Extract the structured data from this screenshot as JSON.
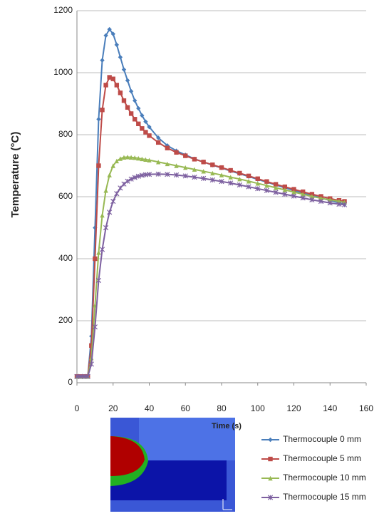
{
  "chart_data": {
    "type": "line",
    "y_label": "Temperature (°C)",
    "x_label": "Time (s)",
    "x": [
      0,
      2,
      4,
      6,
      8,
      10,
      12,
      14,
      16,
      18,
      20,
      22,
      24,
      26,
      28,
      30,
      32,
      34,
      36,
      38,
      40,
      45,
      50,
      55,
      60,
      65,
      70,
      75,
      80,
      85,
      90,
      95,
      100,
      105,
      110,
      115,
      120,
      125,
      130,
      135,
      140,
      145,
      148
    ],
    "series": [
      {
        "name": "Thermocouple 0 mm",
        "color": "#4a7ebb",
        "marker": "diamond",
        "values": [
          20,
          20,
          20,
          20,
          150,
          500,
          850,
          1040,
          1120,
          1140,
          1125,
          1090,
          1050,
          1010,
          975,
          940,
          910,
          885,
          862,
          842,
          825,
          790,
          765,
          748,
          735,
          722,
          712,
          702,
          693,
          683,
          674,
          665,
          656,
          647,
          638,
          629,
          620,
          612,
          604,
          596,
          588,
          580,
          575
        ]
      },
      {
        "name": "Thermocouple 5 mm",
        "color": "#be4b48",
        "marker": "square",
        "values": [
          20,
          20,
          20,
          20,
          120,
          400,
          700,
          880,
          960,
          985,
          980,
          960,
          935,
          910,
          888,
          868,
          850,
          835,
          820,
          808,
          797,
          775,
          757,
          743,
          732,
          721,
          712,
          703,
          694,
          685,
          676,
          667,
          658,
          649,
          640,
          632,
          624,
          616,
          608,
          601,
          594,
          588,
          585
        ]
      },
      {
        "name": "Thermocouple 10 mm",
        "color": "#98b954",
        "marker": "triangle",
        "values": [
          20,
          20,
          20,
          20,
          80,
          250,
          420,
          540,
          620,
          670,
          700,
          715,
          723,
          727,
          728,
          727,
          726,
          724,
          722,
          720,
          718,
          712,
          706,
          700,
          694,
          688,
          682,
          676,
          670,
          663,
          657,
          650,
          643,
          636,
          629,
          622,
          615,
          608,
          601,
          595,
          590,
          585,
          582
        ]
      },
      {
        "name": "Thermocouple 15 mm",
        "color": "#7d60a0",
        "marker": "cross",
        "values": [
          20,
          20,
          20,
          20,
          60,
          180,
          330,
          430,
          500,
          550,
          585,
          610,
          628,
          641,
          650,
          657,
          662,
          666,
          669,
          671,
          672,
          673,
          672,
          670,
          667,
          663,
          659,
          654,
          649,
          644,
          638,
          632,
          626,
          620,
          614,
          608,
          602,
          596,
          590,
          585,
          580,
          576,
          574
        ]
      }
    ],
    "xlim": [
      0,
      160
    ],
    "xticks": [
      0,
      20,
      40,
      60,
      80,
      100,
      120,
      140,
      160
    ],
    "ylim": [
      0,
      1200
    ],
    "yticks": [
      0,
      200,
      400,
      600,
      800,
      1000,
      1200
    ],
    "grid": true
  }
}
